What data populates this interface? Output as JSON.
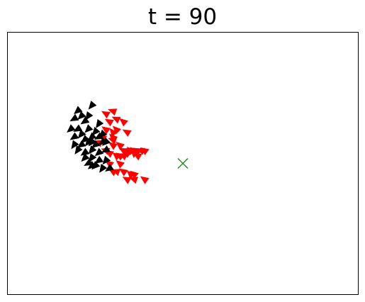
{
  "chart_data": {
    "type": "scatter",
    "title": "t = 90",
    "xlabel": "",
    "ylabel": "",
    "xlim": [
      0,
      1
    ],
    "ylim": [
      0,
      1
    ],
    "grid": false,
    "ticks": false,
    "marker": "triangle",
    "target": {
      "x": 0.5,
      "y": 0.5,
      "marker": "x",
      "color": "#228b22"
    },
    "series": [
      {
        "color": "#ff0000",
        "points": [
          [
            0.28,
            0.69,
            210
          ],
          [
            0.3,
            0.7,
            200
          ],
          [
            0.33,
            0.66,
            220
          ],
          [
            0.31,
            0.67,
            205
          ],
          [
            0.28,
            0.63,
            215
          ],
          [
            0.3,
            0.62,
            230
          ],
          [
            0.31,
            0.63,
            225
          ],
          [
            0.34,
            0.62,
            210
          ],
          [
            0.3,
            0.59,
            200
          ],
          [
            0.3,
            0.57,
            215
          ],
          [
            0.32,
            0.57,
            220
          ],
          [
            0.33,
            0.55,
            210
          ],
          [
            0.34,
            0.55,
            200
          ],
          [
            0.34,
            0.54,
            215
          ],
          [
            0.35,
            0.55,
            225
          ],
          [
            0.36,
            0.55,
            220
          ],
          [
            0.37,
            0.55,
            210
          ],
          [
            0.38,
            0.55,
            200
          ],
          [
            0.39,
            0.55,
            215
          ],
          [
            0.36,
            0.54,
            225
          ],
          [
            0.37,
            0.53,
            210
          ],
          [
            0.33,
            0.53,
            205
          ],
          [
            0.32,
            0.53,
            215
          ],
          [
            0.31,
            0.53,
            220
          ],
          [
            0.29,
            0.54,
            210
          ],
          [
            0.28,
            0.55,
            200
          ],
          [
            0.29,
            0.5,
            215
          ],
          [
            0.3,
            0.47,
            210
          ],
          [
            0.31,
            0.47,
            200
          ],
          [
            0.33,
            0.47,
            215
          ],
          [
            0.35,
            0.46,
            225
          ],
          [
            0.36,
            0.46,
            220
          ],
          [
            0.34,
            0.44,
            210
          ],
          [
            0.36,
            0.44,
            200
          ],
          [
            0.39,
            0.44,
            215
          ],
          [
            0.32,
            0.5,
            220
          ],
          [
            0.3,
            0.6,
            225
          ],
          [
            0.29,
            0.66,
            210
          ],
          [
            0.27,
            0.6,
            215
          ],
          [
            0.26,
            0.58,
            200
          ]
        ]
      },
      {
        "color": "#000000",
        "points": [
          [
            0.2,
            0.7,
            140
          ],
          [
            0.24,
            0.72,
            130
          ],
          [
            0.19,
            0.67,
            150
          ],
          [
            0.21,
            0.68,
            135
          ],
          [
            0.23,
            0.68,
            125
          ],
          [
            0.22,
            0.66,
            145
          ],
          [
            0.25,
            0.62,
            130
          ],
          [
            0.18,
            0.63,
            140
          ],
          [
            0.2,
            0.63,
            150
          ],
          [
            0.23,
            0.63,
            135
          ],
          [
            0.26,
            0.65,
            125
          ],
          [
            0.19,
            0.6,
            145
          ],
          [
            0.21,
            0.61,
            130
          ],
          [
            0.24,
            0.6,
            140
          ],
          [
            0.26,
            0.6,
            150
          ],
          [
            0.27,
            0.61,
            135
          ],
          [
            0.19,
            0.57,
            125
          ],
          [
            0.21,
            0.57,
            145
          ],
          [
            0.23,
            0.58,
            130
          ],
          [
            0.25,
            0.57,
            140
          ],
          [
            0.27,
            0.58,
            150
          ],
          [
            0.28,
            0.58,
            135
          ],
          [
            0.2,
            0.55,
            125
          ],
          [
            0.22,
            0.54,
            145
          ],
          [
            0.24,
            0.55,
            130
          ],
          [
            0.26,
            0.54,
            140
          ],
          [
            0.28,
            0.55,
            150
          ],
          [
            0.22,
            0.52,
            135
          ],
          [
            0.24,
            0.52,
            125
          ],
          [
            0.26,
            0.51,
            145
          ],
          [
            0.28,
            0.51,
            130
          ],
          [
            0.24,
            0.49,
            140
          ],
          [
            0.23,
            0.5,
            150
          ],
          [
            0.25,
            0.49,
            135
          ],
          [
            0.27,
            0.48,
            125
          ],
          [
            0.29,
            0.48,
            145
          ],
          [
            0.24,
            0.58,
            130
          ],
          [
            0.22,
            0.59,
            140
          ]
        ]
      }
    ]
  }
}
